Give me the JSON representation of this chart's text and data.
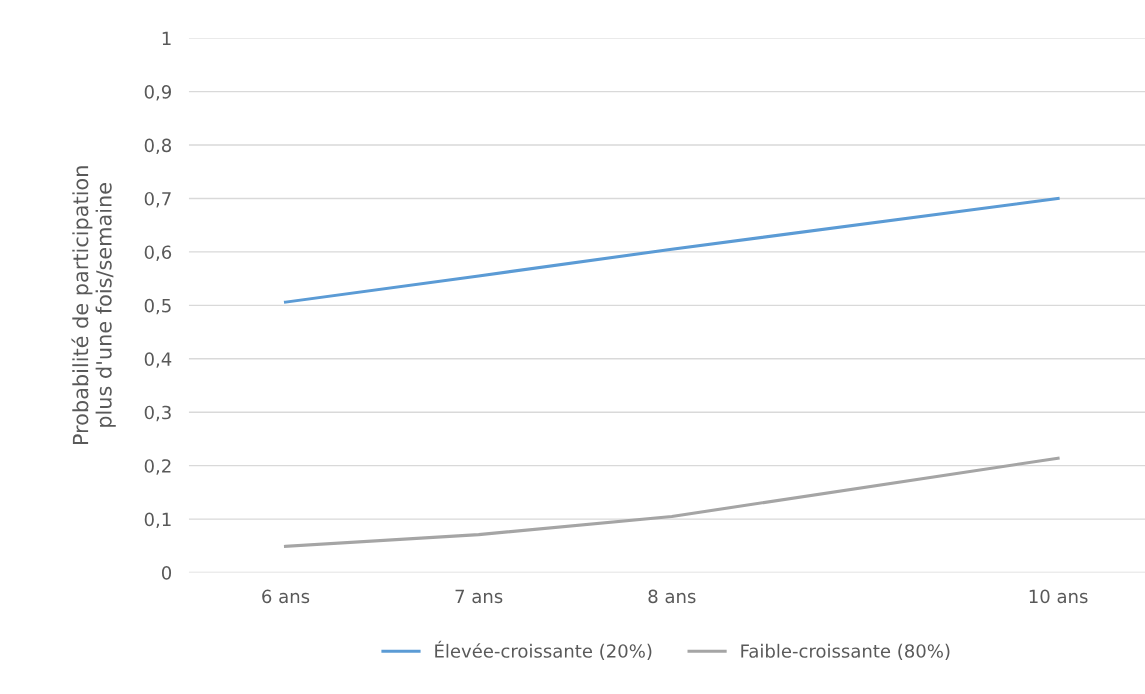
{
  "chart_data": {
    "type": "line",
    "ylabel": "Probabilité de participation\nplus d'une fois/semaine",
    "x": [
      6,
      7,
      8,
      10
    ],
    "series": [
      {
        "name": "Élevée-croissante (20%)",
        "color": "#5b9bd5",
        "values": [
          0.506,
          0.555,
          0.605,
          0.7
        ]
      },
      {
        "name": "Faible-croissante (80%)",
        "color": "#a5a5a5",
        "values": [
          0.049,
          0.071,
          0.105,
          0.214
        ]
      }
    ],
    "xlim": [
      5.5,
      10.45
    ],
    "xticks": [
      {
        "value": 6,
        "label": "6 ans"
      },
      {
        "value": 7,
        "label": "7 ans"
      },
      {
        "value": 8,
        "label": "8 ans"
      },
      {
        "value": 10,
        "label": "10 ans"
      }
    ],
    "ylim": [
      0,
      1
    ],
    "yticks": [
      {
        "value": 0,
        "label": "0"
      },
      {
        "value": 0.1,
        "label": "0,1"
      },
      {
        "value": 0.2,
        "label": "0,2"
      },
      {
        "value": 0.3,
        "label": "0,3"
      },
      {
        "value": 0.4,
        "label": "0,4"
      },
      {
        "value": 0.5,
        "label": "0,5"
      },
      {
        "value": 0.6,
        "label": "0,6"
      },
      {
        "value": 0.7,
        "label": "0,7"
      },
      {
        "value": 0.8,
        "label": "0,8"
      },
      {
        "value": 0.9,
        "label": "0,9"
      },
      {
        "value": 1,
        "label": "1"
      }
    ],
    "grid": "y",
    "legend": "bottom",
    "marker": "none",
    "line_style": "solid"
  }
}
